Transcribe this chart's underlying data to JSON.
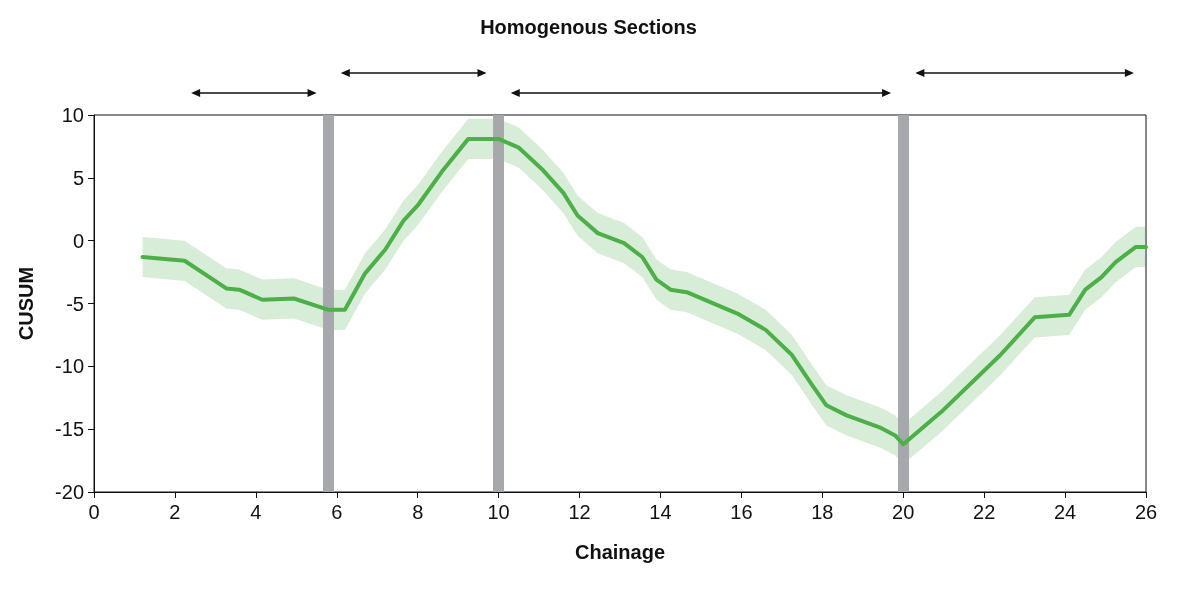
{
  "chart_data": {
    "type": "line",
    "title": "Homogenous Sections",
    "xlabel": "Chainage",
    "ylabel": "CUSUM",
    "xlim": [
      0,
      26
    ],
    "xticks": [
      0,
      2,
      4,
      6,
      8,
      10,
      12,
      14,
      16,
      18,
      20,
      22,
      24,
      26
    ],
    "ylim": [
      -20,
      10
    ],
    "yticks": [
      -20,
      -15,
      -10,
      -5,
      0,
      5,
      10
    ],
    "grid": false,
    "marker": "none",
    "line_style": "solid",
    "series": [
      {
        "color": "#4caf47",
        "x": [
          1.2,
          2.24,
          3.27,
          3.59,
          4.16,
          4.94,
          5.8,
          6.2,
          6.7,
          7.2,
          7.65,
          8.0,
          8.6,
          9.25,
          10,
          10.5,
          11.1,
          11.6,
          11.95,
          12.45,
          13.1,
          13.55,
          13.9,
          14.25,
          14.65,
          15.9,
          16.6,
          17.25,
          17.75,
          18.1,
          18.6,
          19.45,
          19.8,
          20,
          20.95,
          22.4,
          23.25,
          24.1,
          24.5,
          24.9,
          25.25,
          25.75,
          26
        ],
        "values": [
          -1.3,
          -1.6,
          -3.8,
          -3.9,
          -4.7,
          -4.6,
          -5.5,
          -5.5,
          -2.6,
          -0.7,
          1.6,
          2.8,
          5.5,
          8.1,
          8.1,
          7.4,
          5.6,
          3.8,
          2.0,
          0.6,
          -0.2,
          -1.3,
          -3.1,
          -3.9,
          -4.1,
          -5.8,
          -7.1,
          -9.1,
          -11.5,
          -13.1,
          -13.9,
          -14.9,
          -15.5,
          -16.2,
          -13.6,
          -9.1,
          -6.1,
          -5.9,
          -3.9,
          -2.9,
          -1.7,
          -0.5,
          -0.5
        ],
        "lower": [
          -2.9,
          -3.2,
          -5.4,
          -5.5,
          -6.3,
          -6.2,
          -7.1,
          -7.1,
          -4.2,
          -2.3,
          0,
          1.2,
          3.9,
          6.5,
          6.5,
          5.8,
          4,
          2.2,
          0.4,
          -1,
          -1.8,
          -2.9,
          -4.7,
          -5.5,
          -5.7,
          -7.4,
          -8.7,
          -10.7,
          -13.1,
          -14.7,
          -15.5,
          -16.5,
          -17.1,
          -17.8,
          -15.2,
          -10.7,
          -7.7,
          -7.5,
          -5.5,
          -4.5,
          -3.3,
          -2.1,
          -2.1
        ],
        "upper": [
          0.3,
          0,
          -2.2,
          -2.3,
          -3.1,
          -3,
          -3.9,
          -3.9,
          -1,
          0.9,
          3.2,
          4.4,
          7.1,
          9.7,
          9.7,
          9,
          7.2,
          5.4,
          3.6,
          2.2,
          1.4,
          0.3,
          -1.5,
          -2.3,
          -2.5,
          -4.2,
          -5.5,
          -7.5,
          -9.9,
          -11.5,
          -12.3,
          -13.3,
          -13.9,
          -14.6,
          -12,
          -7.5,
          -4.5,
          -4.3,
          -2.3,
          -1.3,
          -0.1,
          1.1,
          1.1
        ]
      }
    ],
    "ref_lines": [
      {
        "axis": "x",
        "value": 5.8,
        "color": "#a7a8ac"
      },
      {
        "axis": "x",
        "value": 10,
        "color": "#a7a8ac"
      },
      {
        "axis": "x",
        "value": 20,
        "color": "#a7a8ac"
      }
    ]
  }
}
